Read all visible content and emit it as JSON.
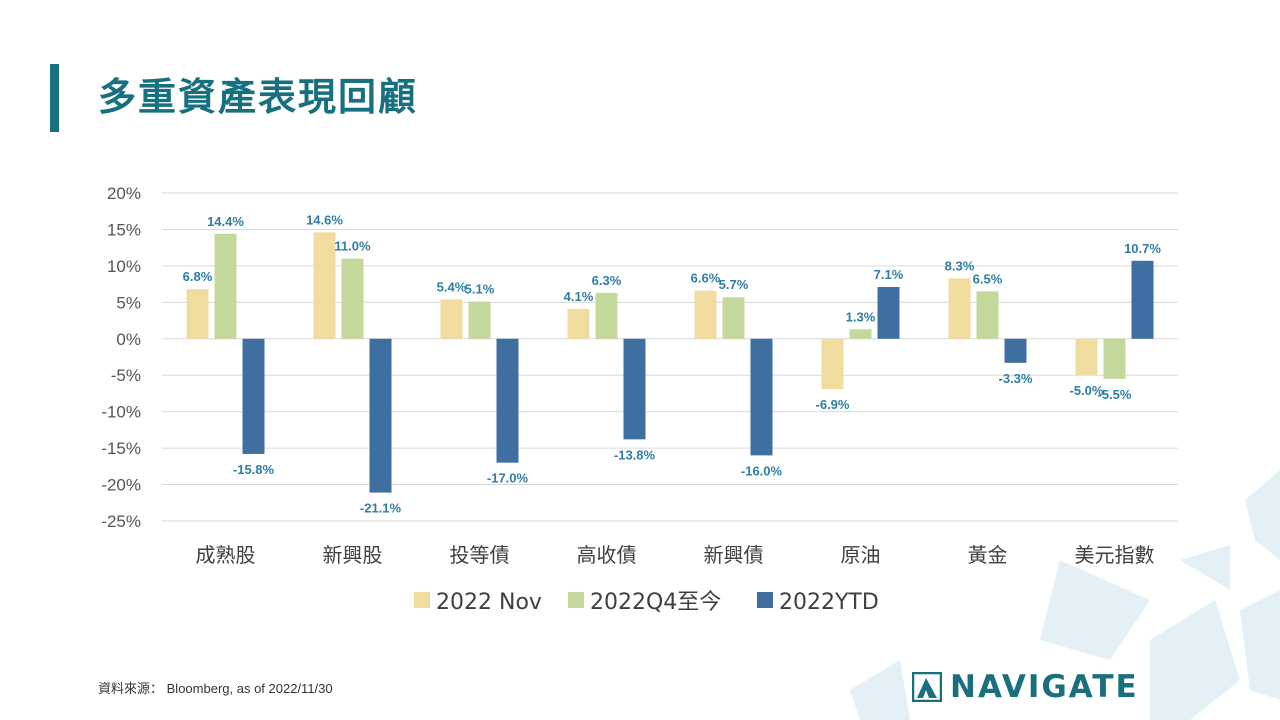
{
  "slide": {
    "title": "多重資產表現回顧",
    "source_label": "資料來源：",
    "source_text": "Bloomberg,  as of 2022/11/30",
    "logo_text": "NAVIGATE"
  },
  "colors": {
    "accent": "#16707f",
    "series": [
      "#f0dc9e",
      "#c5d89b",
      "#3e6fa0"
    ],
    "label": "#2e7ea5",
    "grid": "#d9d9d9"
  },
  "chart_data": {
    "type": "bar",
    "categories": [
      "成熟股",
      "新興股",
      "投等債",
      "高收債",
      "新興債",
      "原油",
      "黃金",
      "美元指數"
    ],
    "series": [
      {
        "name": "2022 Nov",
        "values": [
          6.8,
          14.6,
          5.4,
          4.1,
          6.6,
          -6.9,
          8.3,
          -5.0
        ],
        "labels": [
          "6.8%",
          "14.6%",
          "5.4%",
          "4.1%",
          "6.6%",
          "-6.9%",
          "8.3%",
          "-5.0%"
        ]
      },
      {
        "name": "2022Q4至今",
        "values": [
          14.4,
          11.0,
          5.1,
          6.3,
          5.7,
          1.3,
          6.5,
          -5.5
        ],
        "labels": [
          "14.4%",
          "11.0%",
          "5.1%",
          "6.3%",
          "5.7%",
          "1.3%",
          "6.5%",
          "-5.5%"
        ]
      },
      {
        "name": "2022YTD",
        "values": [
          -15.8,
          -21.1,
          -17.0,
          -13.8,
          -16.0,
          7.1,
          -3.3,
          10.7
        ],
        "labels": [
          "-15.8%",
          "-21.1%",
          "-17.0%",
          "-13.8%",
          "-16.0%",
          "7.1%",
          "-3.3%",
          "10.7%"
        ]
      }
    ],
    "ylim": [
      -25,
      20
    ],
    "yticks": [
      20,
      15,
      10,
      5,
      0,
      -5,
      -10,
      -15,
      -20,
      -25
    ],
    "ytick_labels": [
      "20%",
      "15%",
      "10%",
      "5%",
      "0%",
      "-5%",
      "-10%",
      "-15%",
      "-20%",
      "-25%"
    ],
    "grid": true,
    "legend_position": "bottom"
  }
}
